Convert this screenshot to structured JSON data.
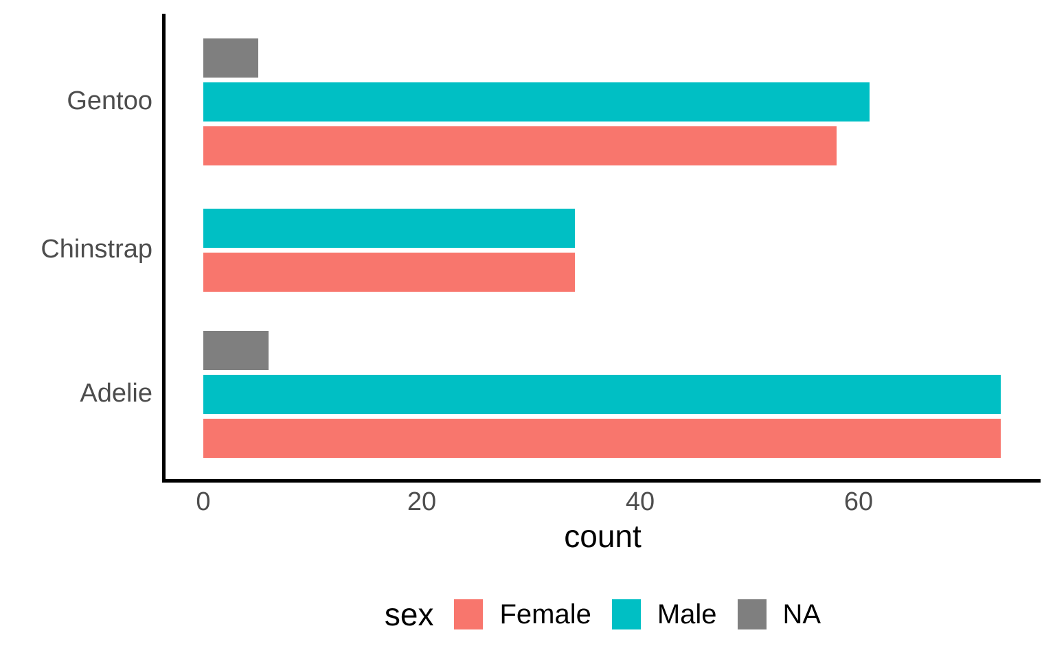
{
  "chart_data": {
    "type": "bar",
    "orientation": "horizontal",
    "title": "",
    "xlabel": "count",
    "ylabel": "",
    "legend_title": "sex",
    "legend_position": "bottom",
    "grid": false,
    "categories": [
      "Gentoo",
      "Chinstrap",
      "Adelie"
    ],
    "series": [
      {
        "name": "Female",
        "color": "#F8766D",
        "values": [
          58,
          34,
          73
        ]
      },
      {
        "name": "Male",
        "color": "#00BFC4",
        "values": [
          61,
          34,
          73
        ]
      },
      {
        "name": "NA",
        "color": "#7F7F7F",
        "values": [
          5,
          null,
          6
        ]
      }
    ],
    "x_ticks": [
      0,
      20,
      40,
      60
    ],
    "xlim": [
      0,
      76.7
    ],
    "axis_line_color": "#000000",
    "tick_label_color": "#4D4D4D",
    "title_text_color": "#000000"
  }
}
